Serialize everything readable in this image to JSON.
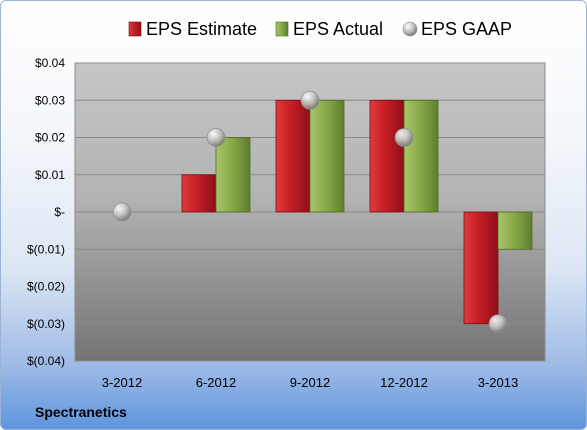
{
  "company": "Spectranetics",
  "colors": {
    "estimate": "#c0262c",
    "actual": "#8cac4c",
    "gaap": "#bfbfbf"
  },
  "chart_data": {
    "type": "bar",
    "title": "",
    "xlabel": "",
    "ylabel": "",
    "categories": [
      "3-2012",
      "6-2012",
      "9-2012",
      "12-2012",
      "3-2013"
    ],
    "ylim": [
      -0.04,
      0.04
    ],
    "yticks": [
      0.04,
      0.03,
      0.02,
      0.01,
      0,
      -0.01,
      -0.02,
      -0.03,
      -0.04
    ],
    "ytick_labels": [
      "$0.04",
      "$0.03",
      "$0.02",
      "$0.01",
      "$-",
      "$(0.01)",
      "$(0.02)",
      "$(0.03)",
      "$(0.04)"
    ],
    "grid": true,
    "legend_position": "top",
    "series": [
      {
        "name": "EPS Estimate",
        "kind": "bar",
        "values": [
          0,
          0.01,
          0.03,
          0.03,
          -0.03
        ]
      },
      {
        "name": "EPS Actual",
        "kind": "bar",
        "values": [
          0,
          0.02,
          0.03,
          0.03,
          -0.01
        ]
      },
      {
        "name": "EPS GAAP",
        "kind": "marker",
        "values": [
          0,
          0.02,
          0.03,
          0.02,
          -0.03
        ]
      }
    ]
  }
}
